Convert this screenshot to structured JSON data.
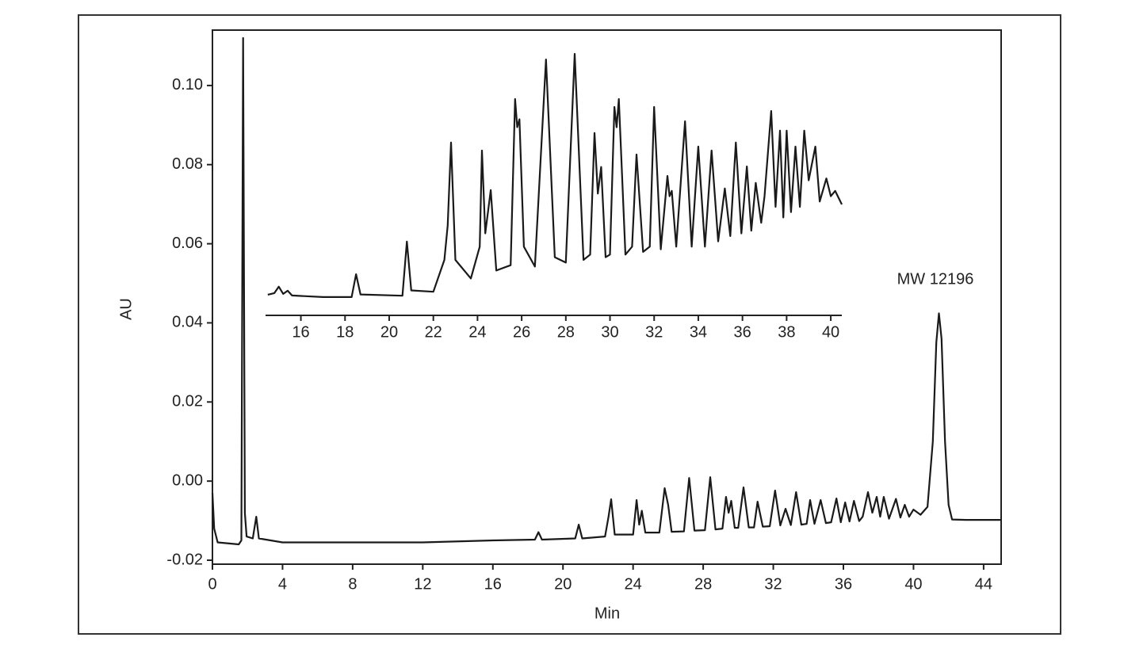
{
  "chart_data": [
    {
      "type": "line",
      "x_label": "Min",
      "y_label": "AU",
      "annotation": "MW 12196",
      "color": "#1a1a1a",
      "xlim": [
        0,
        45
      ],
      "ylim": [
        -0.021,
        0.114
      ],
      "xticks": [
        0,
        4,
        8,
        12,
        16,
        20,
        24,
        28,
        32,
        36,
        40,
        44
      ],
      "yticks": [
        -0.02,
        {
          "value": 0,
          "label": "0.00"
        },
        0.02,
        0.04,
        0.06,
        0.08,
        {
          "value": 0.1,
          "label": "0.10"
        }
      ],
      "x": [
        0,
        0.1,
        0.3,
        1.5,
        1.65,
        1.75,
        1.85,
        1.95,
        2.3,
        2.5,
        2.65,
        4,
        12,
        16,
        18.4,
        18.6,
        18.8,
        20.7,
        20.9,
        21.1,
        22.4,
        22.6,
        22.75,
        22.95,
        24.0,
        24.2,
        24.35,
        24.5,
        24.7,
        25.5,
        25.8,
        26.0,
        26.2,
        26.9,
        27.2,
        27.5,
        28.1,
        28.4,
        28.7,
        29.1,
        29.3,
        29.45,
        29.6,
        29.8,
        30.0,
        30.3,
        30.6,
        30.9,
        31.1,
        31.4,
        31.8,
        32.1,
        32.4,
        32.7,
        33.0,
        33.3,
        33.6,
        33.9,
        34.1,
        34.35,
        34.7,
        35.0,
        35.3,
        35.6,
        35.85,
        36.1,
        36.35,
        36.6,
        36.9,
        37.1,
        37.4,
        37.65,
        37.9,
        38.1,
        38.3,
        38.6,
        39.0,
        39.25,
        39.5,
        39.75,
        40.0,
        40.4,
        40.8,
        41.1,
        41.3,
        41.45,
        41.6,
        41.8,
        42.0,
        42.2,
        43,
        45
      ],
      "values": [
        -0.003,
        -0.012,
        -0.0155,
        -0.016,
        -0.015,
        0.112,
        -0.008,
        -0.014,
        -0.0145,
        -0.009,
        -0.0145,
        -0.0155,
        -0.0155,
        -0.015,
        -0.0148,
        -0.0129,
        -0.0148,
        -0.0145,
        -0.011,
        -0.0145,
        -0.014,
        -0.009,
        -0.0046,
        -0.0135,
        -0.0135,
        -0.0048,
        -0.011,
        -0.0075,
        -0.013,
        -0.013,
        -0.0018,
        -0.006,
        -0.0128,
        -0.0127,
        0.0008,
        -0.0125,
        -0.0124,
        0.001,
        -0.0122,
        -0.012,
        -0.004,
        -0.008,
        -0.005,
        -0.0118,
        -0.0118,
        -0.0016,
        -0.0117,
        -0.0117,
        -0.0052,
        -0.0115,
        -0.0114,
        -0.0024,
        -0.0112,
        -0.007,
        -0.0111,
        -0.0028,
        -0.011,
        -0.0108,
        -0.0048,
        -0.0108,
        -0.0048,
        -0.0106,
        -0.0104,
        -0.0044,
        -0.0104,
        -0.0054,
        -0.0102,
        -0.005,
        -0.0101,
        -0.009,
        -0.0028,
        -0.008,
        -0.004,
        -0.009,
        -0.004,
        -0.0095,
        -0.0045,
        -0.0092,
        -0.006,
        -0.009,
        -0.0072,
        -0.0085,
        -0.0065,
        0.01,
        0.035,
        0.0424,
        0.036,
        0.01,
        -0.006,
        -0.0097,
        -0.0098,
        -0.0098
      ]
    },
    {
      "type": "line",
      "color": "#1a1a1a",
      "xlim": [
        14.4,
        40.5
      ],
      "ylim": [
        0,
        100
      ],
      "xticks": [
        16,
        18,
        20,
        22,
        24,
        26,
        28,
        30,
        32,
        34,
        36,
        38,
        40
      ],
      "x": [
        14.5,
        14.8,
        15.0,
        15.2,
        15.4,
        15.6,
        17,
        18.3,
        18.5,
        18.7,
        20.6,
        20.8,
        21.0,
        22.0,
        22.5,
        22.65,
        22.8,
        23.0,
        23.7,
        24.1,
        24.2,
        24.35,
        24.6,
        24.85,
        25.5,
        25.7,
        25.8,
        25.9,
        26.1,
        26.6,
        27.1,
        27.5,
        28.0,
        28.4,
        28.8,
        29.1,
        29.3,
        29.45,
        29.6,
        29.8,
        30.0,
        30.2,
        30.3,
        30.4,
        30.7,
        31.0,
        31.2,
        31.5,
        31.8,
        32.0,
        32.3,
        32.6,
        32.7,
        32.8,
        33.0,
        33.4,
        33.7,
        34.0,
        34.3,
        34.6,
        34.9,
        35.2,
        35.45,
        35.7,
        35.95,
        36.2,
        36.4,
        36.6,
        36.85,
        37.0,
        37.3,
        37.5,
        37.7,
        37.85,
        38.0,
        38.2,
        38.4,
        38.6,
        38.8,
        39.0,
        39.3,
        39.5,
        39.8,
        40.0,
        40.2,
        40.5
      ],
      "values": [
        6.9,
        7.5,
        9.9,
        7.2,
        8.4,
        6.6,
        6.0,
        6.0,
        14.6,
        7,
        6.5,
        26.9,
        8.5,
        8,
        20,
        33,
        64.2,
        20,
        13,
        25,
        61.2,
        30,
        46.3,
        16,
        18,
        80.6,
        70,
        73,
        25,
        17.5,
        95.5,
        21,
        19,
        97.6,
        20,
        22,
        67.8,
        45,
        55,
        21,
        22,
        77.6,
        70,
        80.6,
        22,
        25,
        59.7,
        23,
        25,
        77.6,
        24,
        51.6,
        44,
        46,
        25,
        72.2,
        25,
        62.7,
        25,
        61.2,
        27,
        46.9,
        29,
        64.2,
        30,
        55.2,
        31,
        49,
        34,
        44,
        76.1,
        40,
        68.7,
        36,
        68.7,
        38,
        62.7,
        40,
        68.7,
        50,
        62.7,
        42,
        50.7,
        44,
        46,
        40.9
      ]
    }
  ]
}
